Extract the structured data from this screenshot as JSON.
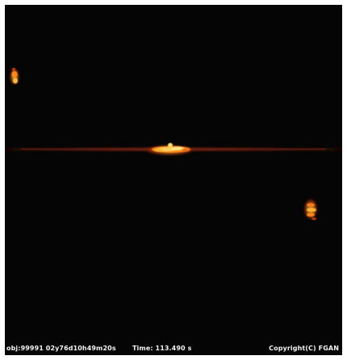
{
  "caption": {
    "object_id": "obj:99991 02y76d10h49m20s",
    "time_text": "Time: 113.490 s",
    "copyright": "Copyright(C) FGAN"
  },
  "colors": {
    "background": "#050505",
    "echo_core": "#fff2a0",
    "echo_mid": "#ff9a1a",
    "echo_edge": "#b0300a",
    "streak": "#5a1a10"
  }
}
